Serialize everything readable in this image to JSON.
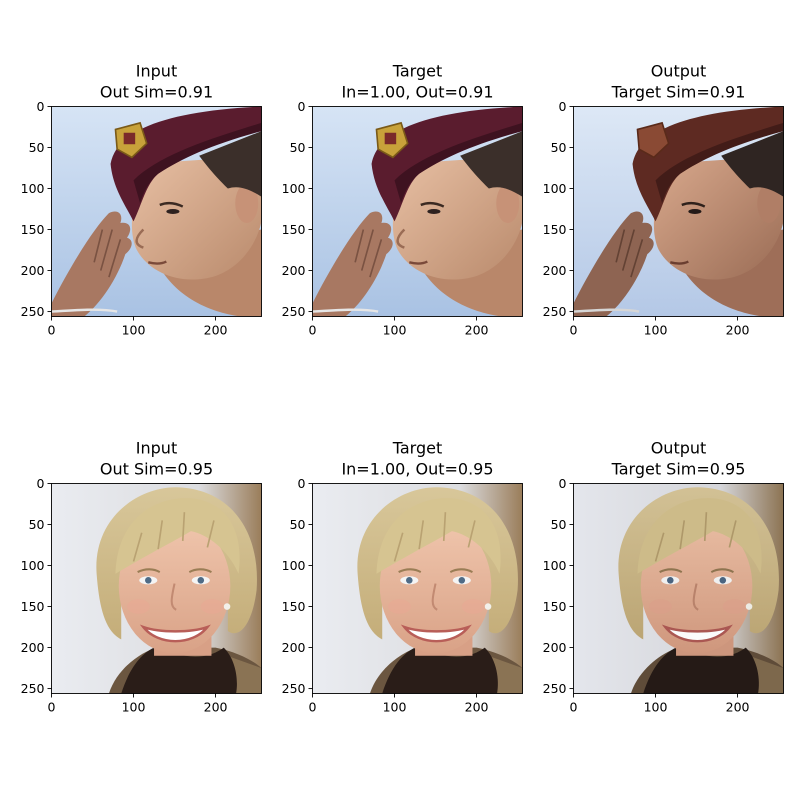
{
  "figure": {
    "rows": [
      {
        "panels": [
          {
            "title_line1": "Input",
            "title_line2": "Out Sim=0.91",
            "image": "soldier-in-maroon-beret-saluting",
            "palette": "beret"
          },
          {
            "title_line1": "Target",
            "title_line2": "In=1.00, Out=0.91",
            "image": "soldier-in-maroon-beret-saluting",
            "palette": "beret"
          },
          {
            "title_line1": "Output",
            "title_line2": "Target Sim=0.91",
            "image": "soldier-in-maroon-beret-saluting-stylized",
            "palette": "beret-out"
          }
        ]
      },
      {
        "panels": [
          {
            "title_line1": "Input",
            "title_line2": "Out Sim=0.95",
            "image": "smiling-blonde-woman-turtleneck",
            "palette": "blonde"
          },
          {
            "title_line1": "Target",
            "title_line2": "In=1.00, Out=0.95",
            "image": "smiling-blonde-woman-turtleneck",
            "palette": "blonde"
          },
          {
            "title_line1": "Output",
            "title_line2": "Target Sim=0.95",
            "image": "smiling-blonde-woman-turtleneck-smoothed",
            "palette": "blonde-out"
          }
        ]
      }
    ]
  },
  "chart_data": {
    "type": "image-grid",
    "panel_count": 6,
    "x_range": [
      0,
      256
    ],
    "y_range": [
      256,
      0
    ],
    "x_ticks": [
      "0",
      "100",
      "200"
    ],
    "y_ticks": [
      "0",
      "50",
      "100",
      "150",
      "200",
      "250"
    ],
    "similarities": [
      {
        "row": 1,
        "out_sim": 0.91,
        "in_target": 1.0,
        "target_out": 0.91,
        "target_sim": 0.91
      },
      {
        "row": 2,
        "out_sim": 0.95,
        "in_target": 1.0,
        "target_out": 0.95,
        "target_sim": 0.95
      }
    ]
  }
}
